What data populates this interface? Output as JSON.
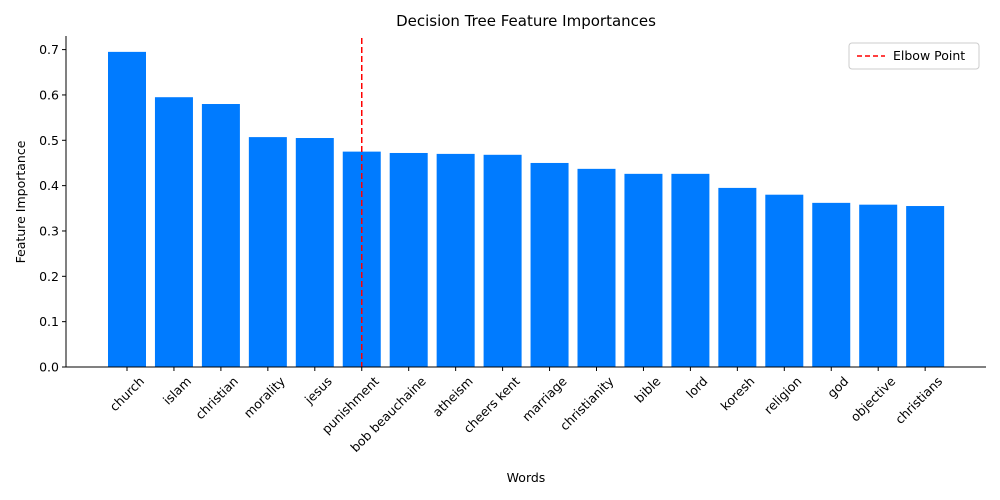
{
  "chart_data": {
    "type": "bar",
    "title": "Decision Tree Feature Importances",
    "xlabel": "Words",
    "ylabel": "Feature Importance",
    "categories": [
      "church",
      "islam",
      "christian",
      "morality",
      "jesus",
      "punishment",
      "bob beauchaine",
      "atheism",
      "cheers kent",
      "marriage",
      "christianity",
      "bible",
      "lord",
      "koresh",
      "religion",
      "god",
      "objective",
      "christians"
    ],
    "values": [
      0.695,
      0.595,
      0.58,
      0.507,
      0.505,
      0.475,
      0.472,
      0.47,
      0.468,
      0.45,
      0.437,
      0.426,
      0.426,
      0.395,
      0.38,
      0.362,
      0.358,
      0.355
    ],
    "ylim": [
      0,
      0.73
    ],
    "yticks": [
      0.0,
      0.1,
      0.2,
      0.3,
      0.4,
      0.5,
      0.6,
      0.7
    ],
    "ytick_labels": [
      "0.0",
      "0.1",
      "0.2",
      "0.3",
      "0.4",
      "0.5",
      "0.6",
      "0.7"
    ],
    "bar_color": "#007bff",
    "elbow": {
      "category_index": 5,
      "label": "Elbow Point",
      "color": "#ff0000"
    },
    "legend_position": "top-right",
    "grid": false
  }
}
